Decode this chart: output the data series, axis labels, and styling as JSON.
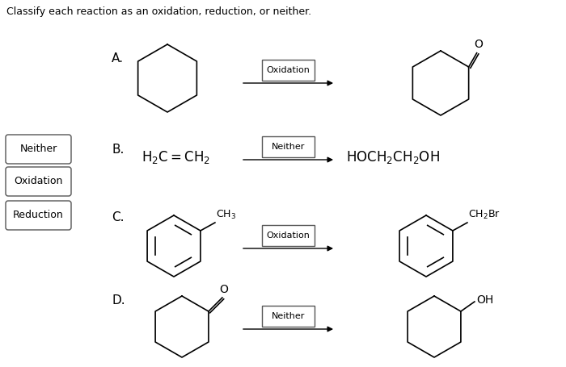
{
  "title": "Classify each reaction as an oxidation, reduction, or neither.",
  "title_fontsize": 9,
  "background_color": "#ffffff",
  "answer_boxes": [
    "Neither",
    "Oxidation",
    "Reduction"
  ],
  "reaction_labels": [
    "Oxidation",
    "Neither",
    "Oxidation",
    "Neither"
  ],
  "row_labels": [
    "A.",
    "B.",
    "C.",
    "D."
  ],
  "B_reactant": "H$_2$C$=$CH$_2$",
  "B_product": "HOCH$_2$CH$_2$OH",
  "C_substituent_left": "CH$_3$",
  "C_substituent_right": "CH$_2$Br",
  "D_substituent_right": "OH"
}
